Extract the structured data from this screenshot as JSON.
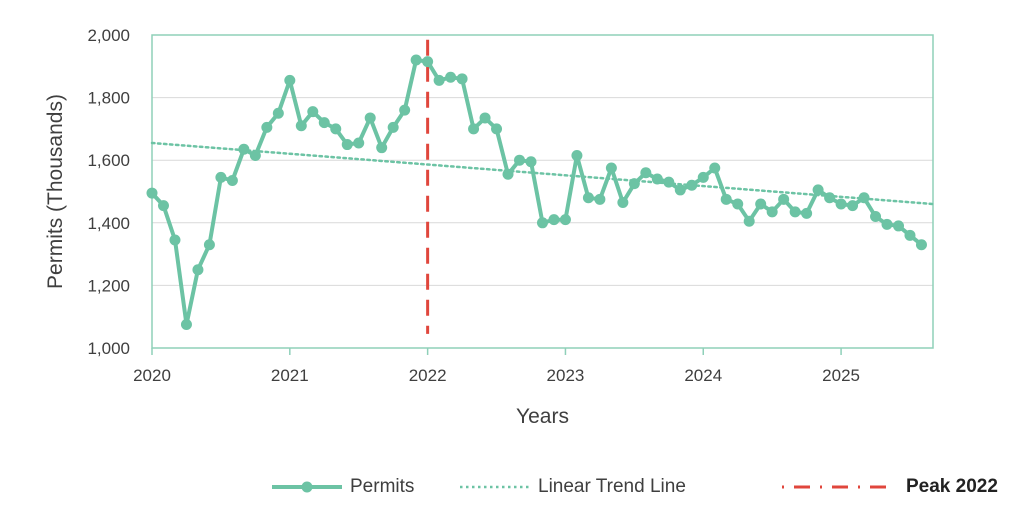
{
  "chart_data": {
    "type": "line",
    "xlabel": "Years",
    "ylabel": "Permits (Thousands)",
    "xlim": [
      2020,
      2025.667
    ],
    "ylim": [
      1000,
      2000
    ],
    "x_ticks": [
      2020,
      2021,
      2022,
      2023,
      2024,
      2025
    ],
    "y_ticks": [
      1000,
      1200,
      1400,
      1600,
      1800,
      2000
    ],
    "y_tick_labels": [
      "1,000",
      "1,200",
      "1,400",
      "1,600",
      "1,800",
      "2,000"
    ],
    "grid": true,
    "legend_position": "bottom",
    "colors": {
      "permits": "#6cc3a4",
      "trend": "#6cc3a4",
      "peak": "#e0463c",
      "frame": "#8fd0b9",
      "grid": "#d9d9d9"
    },
    "series": [
      {
        "name": "Permits",
        "style": "solid-with-markers",
        "x_start": "2020-01",
        "x_step_months": 1,
        "values": [
          1495,
          1455,
          1345,
          1075,
          1250,
          1330,
          1545,
          1535,
          1635,
          1615,
          1705,
          1750,
          1855,
          1710,
          1755,
          1720,
          1700,
          1650,
          1655,
          1735,
          1640,
          1705,
          1760,
          1920,
          1915,
          1855,
          1865,
          1860,
          1700,
          1735,
          1700,
          1555,
          1600,
          1595,
          1400,
          1410,
          1410,
          1615,
          1480,
          1475,
          1575,
          1465,
          1525,
          1560,
          1540,
          1530,
          1505,
          1520,
          1545,
          1575,
          1475,
          1460,
          1405,
          1460,
          1435,
          1475,
          1435,
          1430,
          1505,
          1480,
          1460,
          1455,
          1480,
          1420,
          1395,
          1390,
          1360,
          1330
        ]
      },
      {
        "name": "Linear Trend Line",
        "style": "dotted",
        "x": [
          2020,
          2025.667
        ],
        "y": [
          1655,
          1460
        ]
      },
      {
        "name": "Peak 2022",
        "style": "dashed-vertical",
        "x": 2022,
        "y": [
          1045,
          1985
        ]
      }
    ]
  },
  "legend": {
    "permits": "Permits",
    "trend": "Linear Trend Line",
    "peak": "Peak 2022"
  }
}
